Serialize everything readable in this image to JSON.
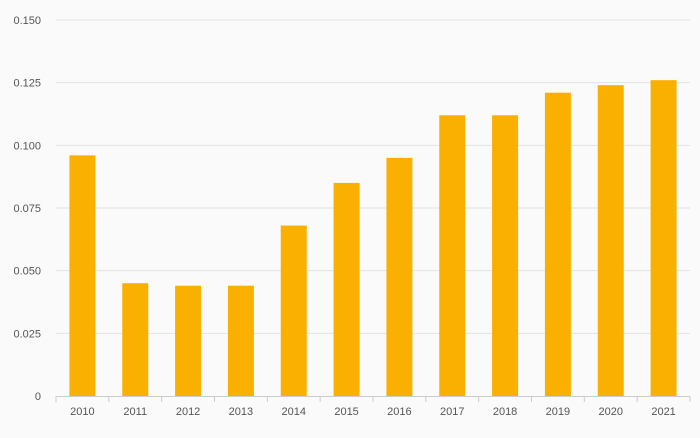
{
  "chart_data": {
    "type": "bar",
    "categories": [
      "2010",
      "2011",
      "2012",
      "2013",
      "2014",
      "2015",
      "2016",
      "2017",
      "2018",
      "2019",
      "2020",
      "2021"
    ],
    "values": [
      0.096,
      0.045,
      0.044,
      0.044,
      0.068,
      0.085,
      0.095,
      0.112,
      0.112,
      0.121,
      0.124,
      0.126
    ],
    "title": "",
    "xlabel": "",
    "ylabel": "",
    "ylim": [
      0,
      0.15
    ],
    "yticks": [
      "0",
      "0.025",
      "0.050",
      "0.075",
      "0.100",
      "0.125",
      "0.150"
    ],
    "grid": true,
    "legend": "none",
    "colors": {
      "bar": "#f9b000",
      "grid": "#e3e3e3",
      "axis": "#cccccc",
      "text": "#555555",
      "background": "#fafafa"
    }
  }
}
